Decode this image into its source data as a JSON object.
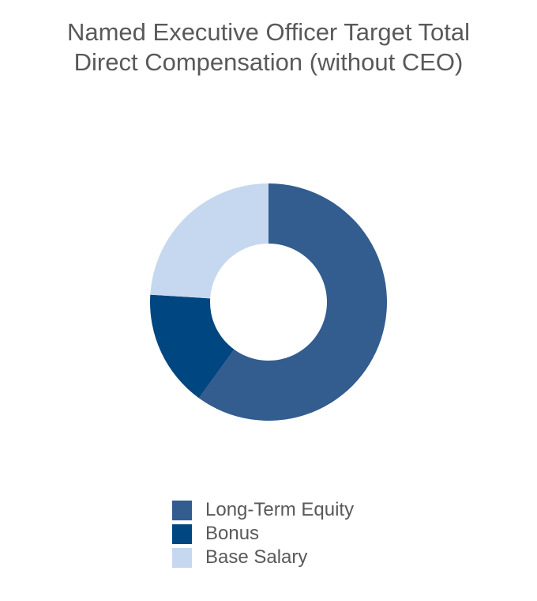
{
  "chart_data": {
    "type": "pie",
    "variant": "donut",
    "title": "Named Executive Officer Target Total Direct Compensation (without CEO)",
    "slices": [
      {
        "label": "Long-Term Equity",
        "value": 60,
        "color": "#335c8f"
      },
      {
        "label": "Bonus",
        "value": 16,
        "color": "#004680"
      },
      {
        "label": "Base Salary",
        "value": 24,
        "color": "#c6d8ef"
      }
    ],
    "start_angle_deg": 0,
    "direction": "clockwise",
    "legend_position": "bottom"
  }
}
